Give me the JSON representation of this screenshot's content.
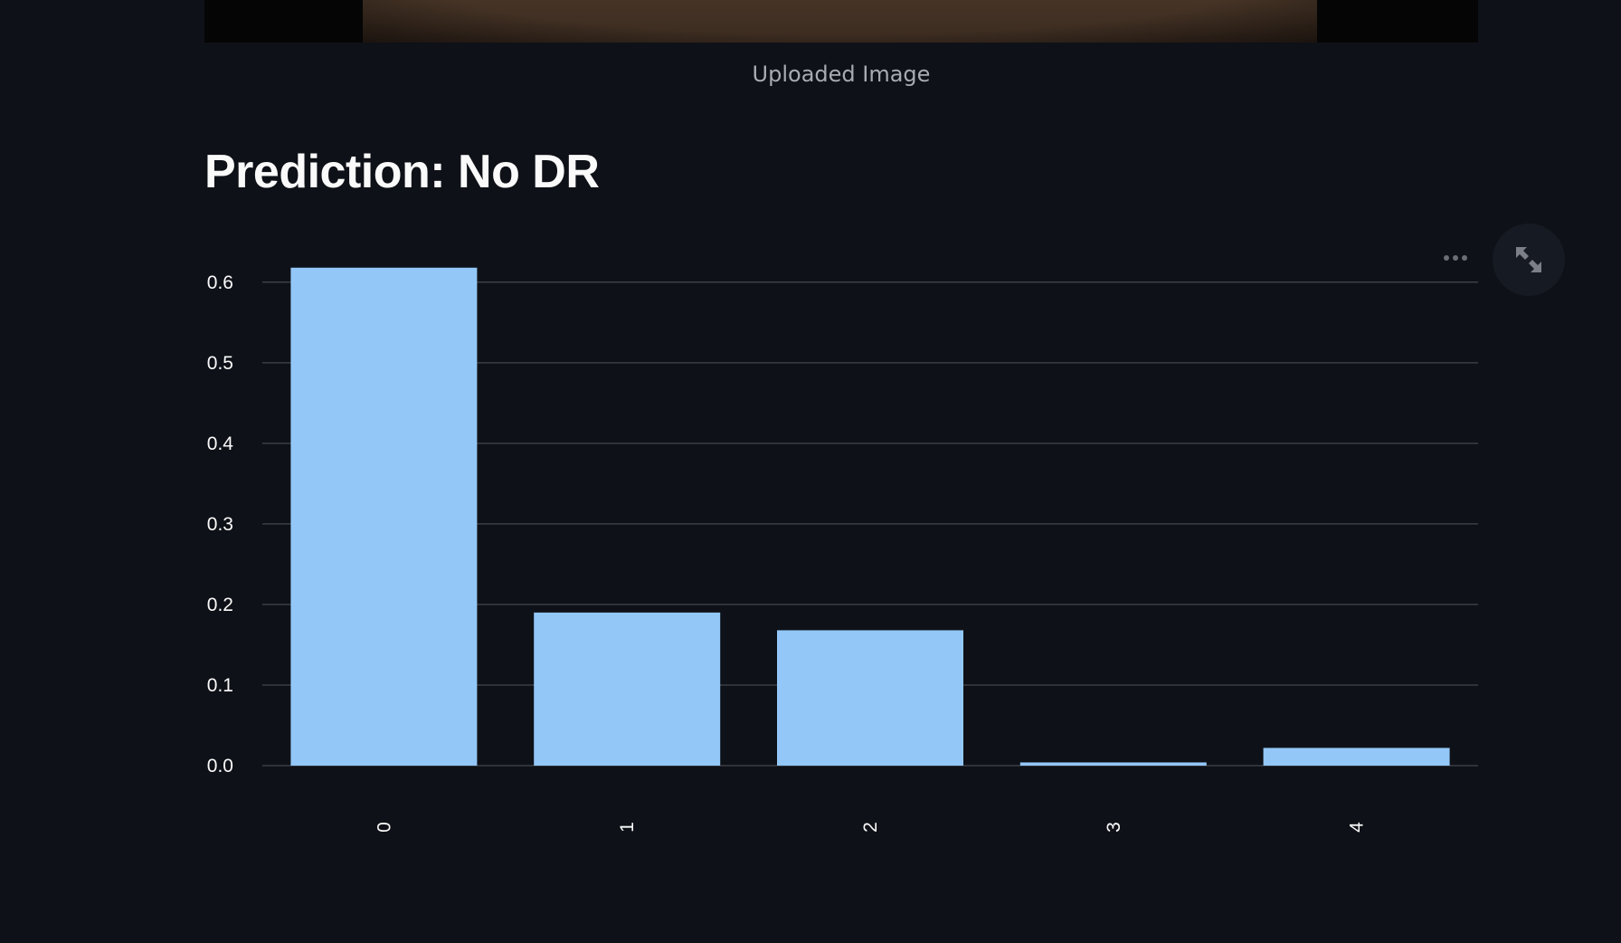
{
  "image": {
    "caption": "Uploaded Image"
  },
  "heading": "Prediction: No DR",
  "chart_toolbar": {
    "menu_icon": "more-horizontal-icon",
    "fullscreen_icon": "expand-icon"
  },
  "colors": {
    "background": "#0e1117",
    "bar": "#93c7f8",
    "grid": "#3a3e47",
    "text": "#fafafa"
  },
  "chart_data": {
    "type": "bar",
    "categories": [
      "0",
      "1",
      "2",
      "3",
      "4"
    ],
    "values": [
      0.618,
      0.19,
      0.168,
      0.004,
      0.022
    ],
    "title": "",
    "xlabel": "",
    "ylabel": "",
    "ylim": [
      0,
      0.62
    ],
    "yticks": [
      "0.0",
      "0.1",
      "0.2",
      "0.3",
      "0.4",
      "0.5",
      "0.6"
    ],
    "grid": true,
    "x_tick_rotation": "vertical"
  }
}
